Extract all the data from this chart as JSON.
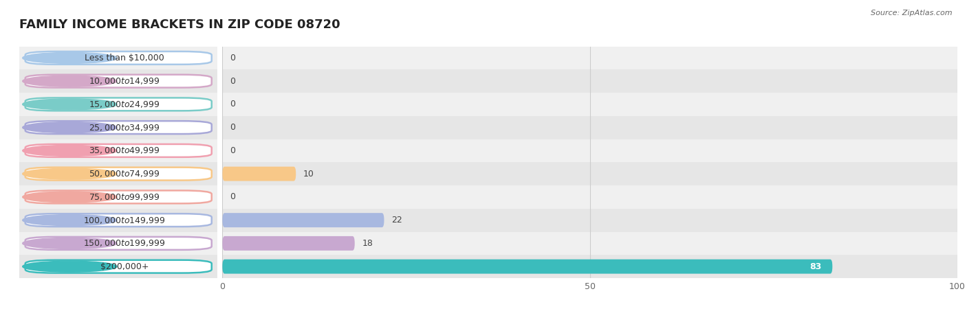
{
  "title": "FAMILY INCOME BRACKETS IN ZIP CODE 08720",
  "source": "Source: ZipAtlas.com",
  "categories": [
    "Less than $10,000",
    "$10,000 to $14,999",
    "$15,000 to $24,999",
    "$25,000 to $34,999",
    "$35,000 to $49,999",
    "$50,000 to $74,999",
    "$75,000 to $99,999",
    "$100,000 to $149,999",
    "$150,000 to $199,999",
    "$200,000+"
  ],
  "values": [
    0,
    0,
    0,
    0,
    0,
    10,
    0,
    22,
    18,
    83
  ],
  "bar_colors": [
    "#a8c8e8",
    "#d4a8c8",
    "#7accc8",
    "#a8a8d8",
    "#f0a0b0",
    "#f8c888",
    "#f0a8a0",
    "#a8b8e0",
    "#c8a8d0",
    "#3bbcbc"
  ],
  "bg_row_colors": [
    "#f0f0f0",
    "#e6e6e6"
  ],
  "xlim": [
    0,
    100
  ],
  "xticks": [
    0,
    50,
    100
  ],
  "title_fontsize": 13,
  "label_fontsize": 9,
  "value_fontsize": 9,
  "background_color": "#ffffff",
  "bar_height": 0.62,
  "grid_color": "#cccccc",
  "label_pill_color": "#ffffff",
  "label_text_color": "#333333",
  "value_text_color": "#444444",
  "value_inside_color": "#ffffff"
}
